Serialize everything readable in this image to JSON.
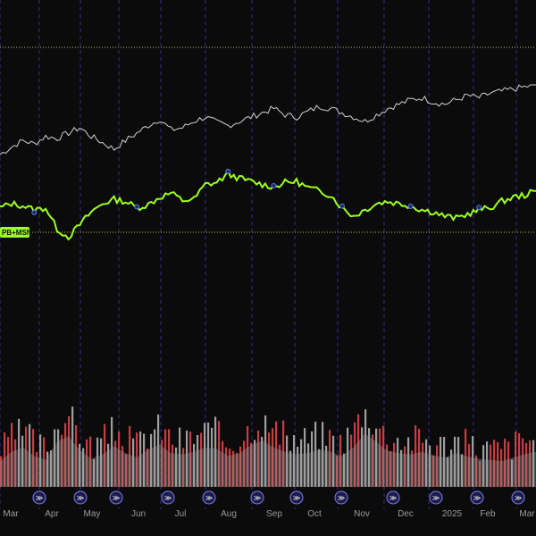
{
  "chart_data": {
    "type": "line",
    "title": "",
    "xlabel": "",
    "ylabel": "",
    "grid": true,
    "x_tick_labels": [
      "Mar",
      "Apr",
      "May",
      "Jun",
      "Jul",
      "Aug",
      "Sep",
      "Oct",
      "Nov",
      "Dec",
      "2025",
      "Feb",
      "Mar"
    ],
    "series": [
      {
        "name": "",
        "color": "#e8e8e8",
        "values": [
          0.35,
          0.42,
          0.48,
          0.45,
          0.52,
          0.5,
          0.55,
          0.6,
          0.52,
          0.46,
          0.4,
          0.48,
          0.55,
          0.62,
          0.68,
          0.58,
          0.6,
          0.66,
          0.7,
          0.65,
          0.62,
          0.66,
          0.7,
          0.74,
          0.78,
          0.72,
          0.7,
          0.75,
          0.8,
          0.78,
          0.74,
          0.7,
          0.66,
          0.72,
          0.78,
          0.82,
          0.86,
          0.88,
          0.84,
          0.82,
          0.86,
          0.9,
          0.88,
          0.92,
          0.94,
          0.96,
          0.98,
          1.0
        ]
      },
      {
        "name": "PB+MSN",
        "color": "#9dff1e",
        "values": [
          0.3,
          0.34,
          0.32,
          0.28,
          0.3,
          0.1,
          0.02,
          0.14,
          0.26,
          0.34,
          0.38,
          0.36,
          0.3,
          0.33,
          0.4,
          0.44,
          0.37,
          0.38,
          0.52,
          0.54,
          0.62,
          0.58,
          0.55,
          0.52,
          0.5,
          0.54,
          0.55,
          0.49,
          0.46,
          0.42,
          0.3,
          0.22,
          0.28,
          0.34,
          0.36,
          0.34,
          0.32,
          0.28,
          0.26,
          0.22,
          0.2,
          0.24,
          0.28,
          0.3,
          0.36,
          0.4,
          0.42,
          0.46
        ]
      }
    ],
    "volume": {
      "values": [
        0.45,
        0.62,
        0.7,
        0.55,
        0.48,
        0.8,
        0.9,
        0.65,
        0.5,
        0.58,
        0.72,
        0.6,
        0.52,
        0.66,
        0.75,
        0.6,
        0.58,
        0.62,
        0.7,
        0.68,
        0.55,
        0.6,
        0.74,
        0.82,
        0.7,
        0.62,
        0.58,
        0.6,
        0.66,
        0.62,
        0.55,
        0.7,
        0.95,
        0.8,
        0.64,
        0.6,
        0.58,
        0.62,
        0.56,
        0.52,
        0.6,
        0.54,
        0.5,
        0.48,
        0.46,
        0.52,
        0.58,
        0.62
      ],
      "up_color": "#b9b9b9",
      "down_color": "#e8464c"
    },
    "event_markers": {
      "label": "≫",
      "color": "#1c1c4a"
    },
    "reference_lines": [
      {
        "label": "upper reference",
        "color": "#d7d25a"
      },
      {
        "label": "lower reference",
        "color": "#d7d25a"
      }
    ]
  }
}
